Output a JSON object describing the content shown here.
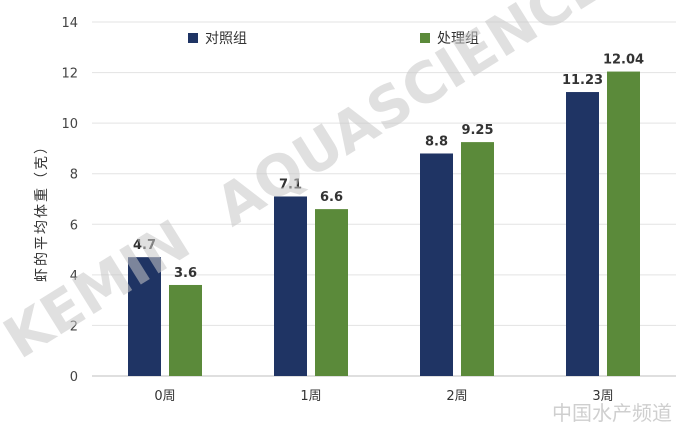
{
  "chart_data": {
    "type": "bar",
    "ylabel": "虾的平均体重（克）",
    "xlabel": "",
    "categories": [
      "0周",
      "1周",
      "2周",
      "3周"
    ],
    "ylim": [
      0,
      14
    ],
    "yticks": [
      0,
      2,
      4,
      6,
      8,
      10,
      12,
      14
    ],
    "grid": true,
    "legend_position": "top",
    "series": [
      {
        "name": "对照组",
        "color": "#1f3464",
        "values": [
          4.7,
          7.1,
          8.8,
          11.23
        ],
        "labels": [
          "4.7",
          "7.1",
          "8.8",
          "11.23"
        ]
      },
      {
        "name": "处理组",
        "color": "#5b8a3a",
        "values": [
          3.6,
          6.6,
          9.25,
          12.04
        ],
        "labels": [
          "3.6",
          "6.6",
          "9.25",
          "12.04"
        ]
      }
    ]
  },
  "watermark": {
    "logo_text": "KEMIN",
    "text": "AQUASCIENCE",
    "corner_text": "中国水产频道"
  }
}
